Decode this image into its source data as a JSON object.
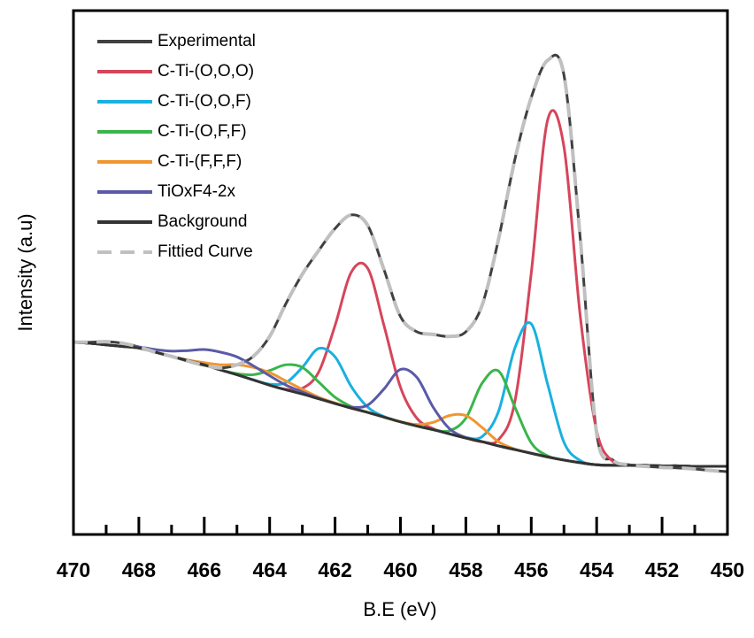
{
  "chart_data": {
    "type": "line",
    "xlabel": "B.E (eV)",
    "ylabel": "Intensity (a.u)",
    "xlim": [
      470,
      450
    ],
    "ylim": [
      0,
      100
    ],
    "xticks": [
      470,
      468,
      466,
      464,
      462,
      460,
      458,
      456,
      454,
      452,
      450
    ],
    "xminor_ticks": [
      469,
      467,
      465,
      463,
      461,
      459,
      457,
      455,
      453,
      451
    ],
    "legend": "upper-left",
    "x": [
      470,
      469.5,
      469,
      468.5,
      468,
      467.5,
      467,
      466.5,
      466,
      465.5,
      465,
      464.5,
      464,
      463.5,
      463,
      462.5,
      462,
      461.5,
      461,
      460.5,
      460,
      459.5,
      459,
      458.5,
      458,
      457.5,
      457,
      456.5,
      456,
      455.5,
      455,
      454.5,
      454,
      453.5,
      453,
      452.5,
      452,
      451.5,
      451,
      450.5,
      450
    ],
    "series": [
      {
        "name": "Experimental",
        "color": "#404040",
        "dashed": false,
        "values": [
          36.7,
          36.7,
          36.8,
          36.5,
          35.8,
          34.8,
          34.0,
          33.1,
          32.3,
          31.8,
          32.4,
          34.0,
          37.8,
          44.1,
          49.7,
          54.2,
          58.4,
          61.0,
          59.0,
          50.5,
          41.6,
          38.7,
          38.2,
          37.8,
          38.7,
          43.8,
          56.4,
          71.6,
          83.4,
          90.5,
          87.7,
          56.4,
          19.3,
          14.2,
          13.3,
          13.0,
          12.8,
          12.7,
          12.5,
          12.2,
          12.0
        ]
      },
      {
        "name": "C-Ti-(O,O,O)",
        "color": "#d6455a",
        "dashed": false,
        "values": [
          36.7,
          36.5,
          36.2,
          35.9,
          35.6,
          34.8,
          34.0,
          33.2,
          32.4,
          31.4,
          30.5,
          29.5,
          28.5,
          27.7,
          27.9,
          31.0,
          39.9,
          50.1,
          50.8,
          39.8,
          28.1,
          22.2,
          20.2,
          19.2,
          18.4,
          17.7,
          18.1,
          25.4,
          49.9,
          79.1,
          74.0,
          41.6,
          19.8,
          13.9,
          13.2,
          13.2,
          13.1,
          13.1,
          13.0,
          13.0,
          13.0
        ]
      },
      {
        "name": "C-Ti-(O,O,F)",
        "color": "#1ab0e0",
        "dashed": false,
        "values": [
          36.7,
          36.5,
          36.2,
          35.9,
          35.6,
          34.8,
          34.0,
          33.2,
          32.4,
          31.4,
          30.5,
          29.5,
          28.7,
          29.0,
          31.9,
          35.5,
          33.9,
          28.2,
          24.3,
          22.5,
          21.5,
          20.7,
          20.0,
          19.2,
          18.5,
          18.7,
          23.5,
          35.6,
          40.2,
          28.7,
          17.6,
          14.1,
          13.3,
          13.2,
          13.2,
          13.2,
          13.1,
          13.1,
          13.0,
          13.0,
          13.0
        ]
      },
      {
        "name": "C-Ti-(O,F,F)",
        "color": "#3ab54a",
        "dashed": false,
        "values": [
          36.7,
          36.5,
          36.2,
          35.9,
          35.6,
          34.8,
          34.0,
          33.2,
          32.4,
          31.4,
          30.7,
          30.5,
          31.3,
          32.4,
          31.9,
          29.1,
          26.2,
          24.4,
          23.3,
          22.4,
          21.5,
          20.7,
          20.0,
          19.8,
          22.2,
          28.9,
          31.2,
          24.3,
          17.5,
          15.0,
          14.2,
          13.7,
          13.3,
          13.2,
          13.2,
          13.2,
          13.1,
          13.1,
          13.0,
          13.0,
          13.0
        ]
      },
      {
        "name": "C-Ti-(F,F,F)",
        "color": "#f0962f",
        "dashed": false,
        "values": [
          36.7,
          36.5,
          36.2,
          35.9,
          35.6,
          34.8,
          34.0,
          33.3,
          32.8,
          32.4,
          32.4,
          31.9,
          30.9,
          29.3,
          27.7,
          26.2,
          25.1,
          24.1,
          23.3,
          22.4,
          21.5,
          21.0,
          21.4,
          22.7,
          22.7,
          20.4,
          17.7,
          16.3,
          15.5,
          14.8,
          14.2,
          13.7,
          13.3,
          13.2,
          13.2,
          13.2,
          13.1,
          13.1,
          13.0,
          13.0,
          13.0
        ]
      },
      {
        "name": "TiOxF4-2x",
        "color": "#5a5aa8",
        "dashed": false,
        "values": [
          36.7,
          36.5,
          36.2,
          35.9,
          35.8,
          35.3,
          35.0,
          35.1,
          35.3,
          34.8,
          33.9,
          32.2,
          30.3,
          28.5,
          27.2,
          26.0,
          25.0,
          24.3,
          24.7,
          27.8,
          31.5,
          30.0,
          24.3,
          20.2,
          18.5,
          17.7,
          16.9,
          16.2,
          15.5,
          14.8,
          14.2,
          13.7,
          13.3,
          13.2,
          13.2,
          13.2,
          13.1,
          13.1,
          13.0,
          13.0,
          13.0
        ]
      },
      {
        "name": "Background",
        "color": "#333333",
        "dashed": false,
        "values": [
          36.7,
          36.5,
          36.2,
          35.9,
          35.6,
          34.8,
          34.0,
          33.2,
          32.4,
          31.4,
          30.5,
          29.5,
          28.5,
          27.6,
          26.8,
          25.9,
          25.0,
          24.1,
          23.3,
          22.4,
          21.5,
          20.7,
          20.0,
          19.2,
          18.4,
          17.7,
          16.9,
          16.2,
          15.5,
          14.8,
          14.2,
          13.7,
          13.3,
          13.2,
          13.2,
          13.2,
          13.1,
          13.1,
          13.0,
          13.0,
          13.0
        ]
      },
      {
        "name": "Fittied Curve",
        "color": "#c0c0c0",
        "dashed": true,
        "values": [
          36.7,
          36.7,
          36.8,
          36.5,
          35.8,
          34.8,
          34.0,
          33.1,
          32.3,
          31.8,
          32.4,
          34.0,
          37.8,
          44.1,
          49.7,
          54.2,
          58.4,
          61.0,
          59.0,
          50.5,
          41.6,
          38.7,
          38.2,
          37.8,
          38.7,
          43.8,
          56.4,
          71.6,
          83.4,
          90.5,
          87.7,
          56.4,
          19.3,
          14.2,
          13.3,
          13.0,
          12.8,
          12.7,
          12.5,
          12.2,
          12.0
        ]
      }
    ]
  }
}
